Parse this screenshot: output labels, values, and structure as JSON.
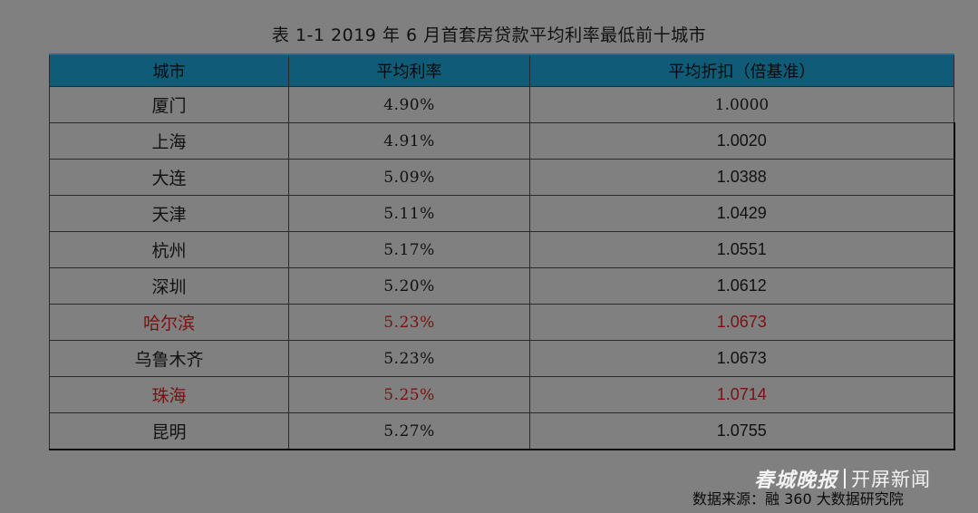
{
  "title": "表 1-1  2019 年 6 月首套房贷款平均利率最低前十城市",
  "table": {
    "headers": [
      "城市",
      "平均利率",
      "平均折扣（倍基准）"
    ],
    "rows": [
      {
        "city": "厦门",
        "rate": "4.90%",
        "discount": "1.0000",
        "highlight": false
      },
      {
        "city": "上海",
        "rate": "4.91%",
        "discount": "1.0020",
        "highlight": false
      },
      {
        "city": "大连",
        "rate": "5.09%",
        "discount": "1.0388",
        "highlight": false
      },
      {
        "city": "天津",
        "rate": "5.11%",
        "discount": "1.0429",
        "highlight": false
      },
      {
        "city": "杭州",
        "rate": "5.17%",
        "discount": "1.0551",
        "highlight": false
      },
      {
        "city": "深圳",
        "rate": "5.20%",
        "discount": "1.0612",
        "highlight": false
      },
      {
        "city": "哈尔滨",
        "rate": "5.23%",
        "discount": "1.0673",
        "highlight": true
      },
      {
        "city": "乌鲁木齐",
        "rate": "5.23%",
        "discount": "1.0673",
        "highlight": false
      },
      {
        "city": "珠海",
        "rate": "5.25%",
        "discount": "1.0714",
        "highlight": true
      },
      {
        "city": "昆明",
        "rate": "5.27%",
        "discount": "1.0755",
        "highlight": false
      }
    ]
  },
  "watermark": {
    "logo": "春城晚报",
    "name": "开屏新闻"
  },
  "source": "数据来源：融 360 大数据研究院",
  "colors": {
    "background": "#808080",
    "header_fill": "#0f5b78",
    "highlight_text": "#7a1010"
  }
}
